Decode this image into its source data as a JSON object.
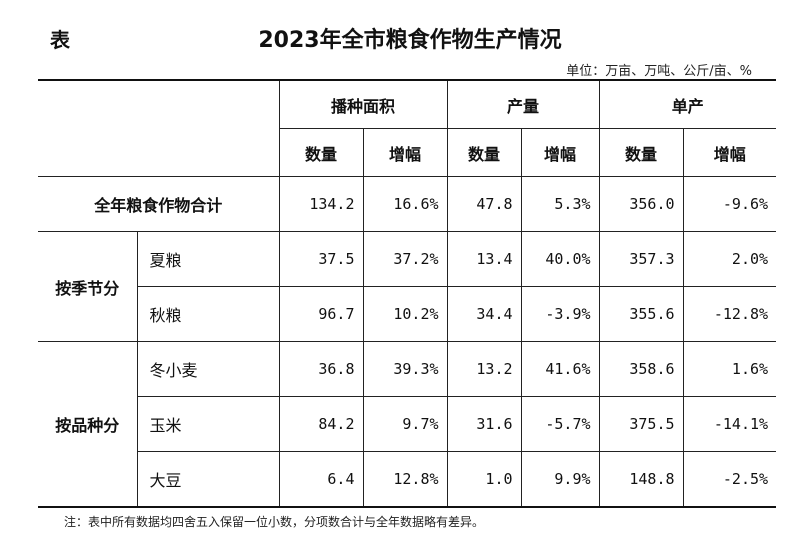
{
  "table_label": "表",
  "title": "2023年全市粮食作物生产情况",
  "unit": "单位：万亩、万吨、公斤/亩、%",
  "headers": {
    "group1": "播种面积",
    "group2": "产量",
    "group3": "单产",
    "sub_count": "数量",
    "sub_change": "增幅"
  },
  "total_row": {
    "label": "全年粮食作物合计",
    "values": [
      "134.2",
      "16.6%",
      "47.8",
      "5.3%",
      "356.0",
      "-9.6%"
    ]
  },
  "season_group": {
    "label": "按季节分",
    "rows": [
      {
        "name": "夏粮",
        "values": [
          "37.5",
          "37.2%",
          "13.4",
          "40.0%",
          "357.3",
          "2.0%"
        ]
      },
      {
        "name": "秋粮",
        "values": [
          "96.7",
          "10.2%",
          "34.4",
          "-3.9%",
          "355.6",
          "-12.8%"
        ]
      }
    ]
  },
  "variety_group": {
    "label": "按品种分",
    "rows": [
      {
        "name": "冬小麦",
        "values": [
          "36.8",
          "39.3%",
          "13.2",
          "41.6%",
          "358.6",
          "1.6%"
        ]
      },
      {
        "name": "玉米",
        "values": [
          "84.2",
          "9.7%",
          "31.6",
          "-5.7%",
          "375.5",
          "-14.1%"
        ]
      },
      {
        "name": "大豆",
        "values": [
          "6.4",
          "12.8%",
          "1.0",
          "9.9%",
          "148.8",
          "-2.5%"
        ]
      }
    ]
  },
  "note": "注：表中所有数据均四舍五入保留一位小数，分项数合计与全年数据略有差异。"
}
